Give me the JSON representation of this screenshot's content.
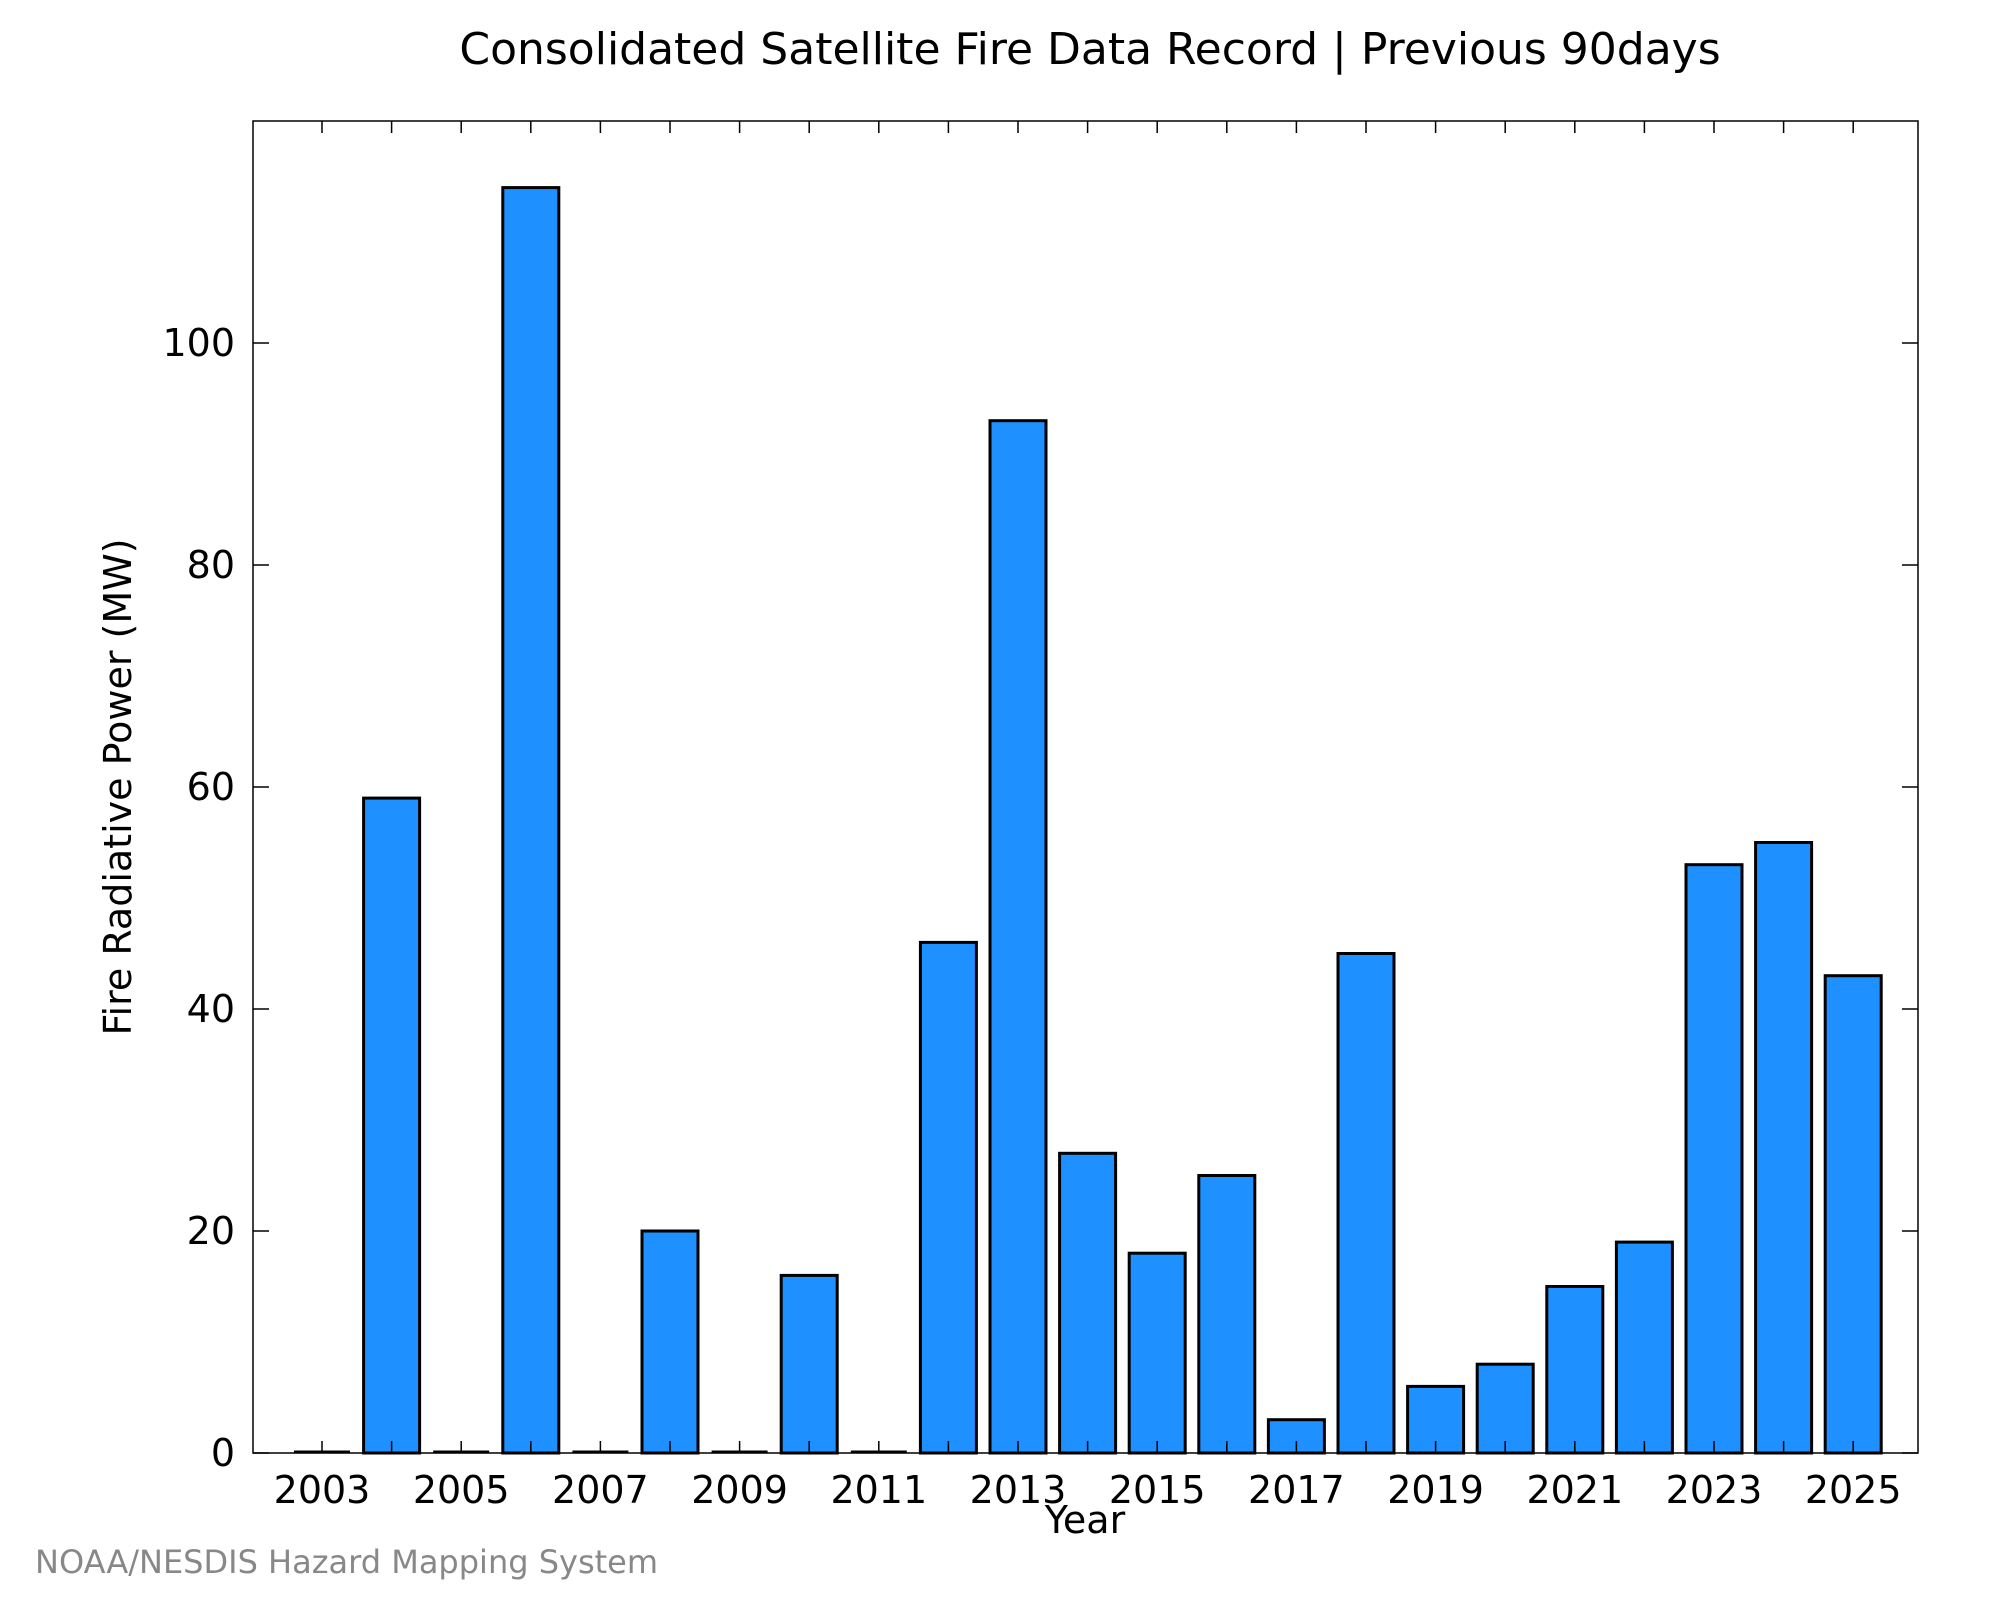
{
  "chart_data": {
    "type": "bar",
    "title": "Consolidated Satellite Fire Data Record | Previous 90days",
    "xlabel": "Year",
    "ylabel": "Fire Radiative Power (MW)",
    "categories": [
      "2003",
      "2004",
      "2005",
      "2006",
      "2007",
      "2008",
      "2009",
      "2010",
      "2011",
      "2012",
      "2013",
      "2014",
      "2015",
      "2016",
      "2017",
      "2018",
      "2019",
      "2020",
      "2021",
      "2022",
      "2023",
      "2024",
      "2025"
    ],
    "values": [
      0,
      59,
      0,
      114,
      0,
      20,
      0,
      16,
      0,
      46,
      93,
      27,
      18,
      25,
      3,
      45,
      6,
      8,
      15,
      19,
      53,
      55,
      43
    ],
    "x_tick_labels": [
      "2003",
      "2005",
      "2007",
      "2009",
      "2011",
      "2013",
      "2015",
      "2017",
      "2019",
      "2021",
      "2023",
      "2025"
    ],
    "y_ticks": [
      0,
      20,
      40,
      60,
      80,
      100
    ],
    "ylim": [
      0,
      120
    ],
    "grid": false,
    "bar_color": "#1E90FF",
    "bar_edge_color": "#000000"
  },
  "footer": {
    "credit": "NOAA/NESDIS Hazard Mapping System"
  }
}
